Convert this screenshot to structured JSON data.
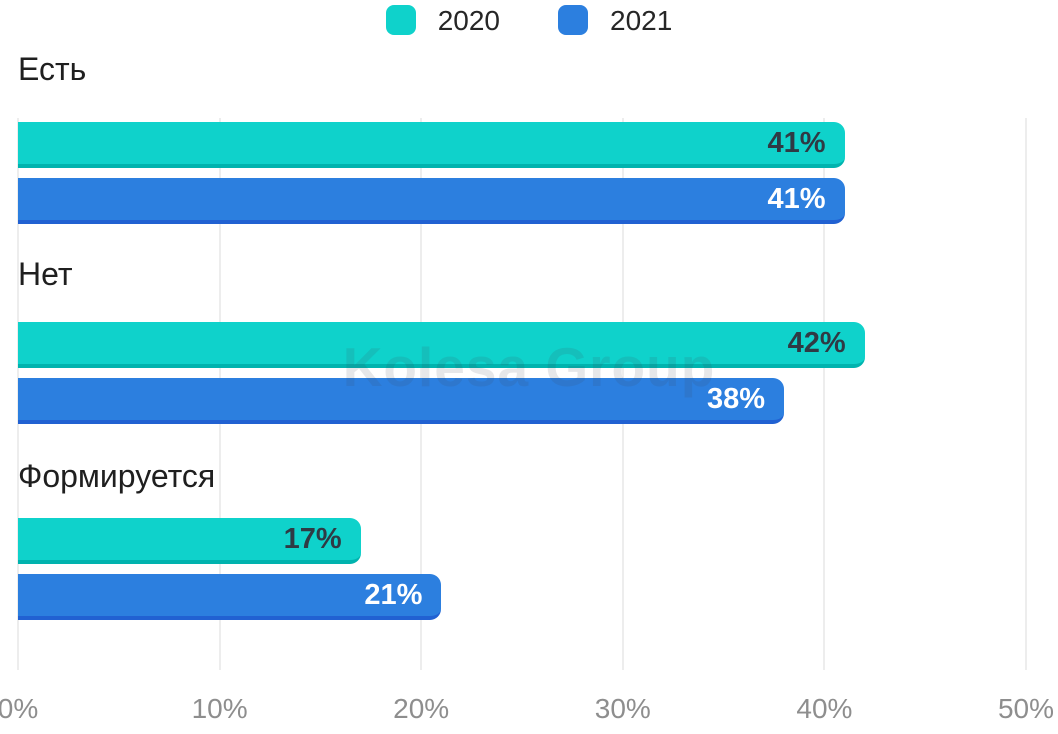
{
  "watermark": "Kolesa Group",
  "legend": {
    "items": [
      {
        "label": "2020",
        "color": "#0fd2cb"
      },
      {
        "label": "2021",
        "color": "#2c7fdf"
      }
    ]
  },
  "chart_data": {
    "type": "bar",
    "orientation": "horizontal",
    "title": "",
    "categories": [
      "Есть",
      "Нет",
      "Формируется"
    ],
    "series": [
      {
        "name": "2020",
        "color": "#0fd2cb",
        "edge_color": "#00b3ae",
        "label_color": "#2f3a44",
        "values": [
          41,
          42,
          17
        ],
        "value_labels": [
          "41%",
          "42%",
          "17%"
        ]
      },
      {
        "name": "2021",
        "color": "#2c7fdf",
        "edge_color": "#2161d2",
        "label_color": "#ffffff",
        "values": [
          41,
          38,
          21
        ],
        "value_labels": [
          "41%",
          "38%",
          "21%"
        ]
      }
    ],
    "xlim": [
      0,
      50
    ],
    "x_ticks": [
      {
        "value": 0,
        "label": "0%"
      },
      {
        "value": 10,
        "label": "10%"
      },
      {
        "value": 20,
        "label": "20%"
      },
      {
        "value": 30,
        "label": "30%"
      },
      {
        "value": 40,
        "label": "40%"
      },
      {
        "value": 50,
        "label": "50%"
      }
    ],
    "grid": true,
    "grid_color": "#ededed",
    "legend_position": "top",
    "value_labels_inside": true
  }
}
